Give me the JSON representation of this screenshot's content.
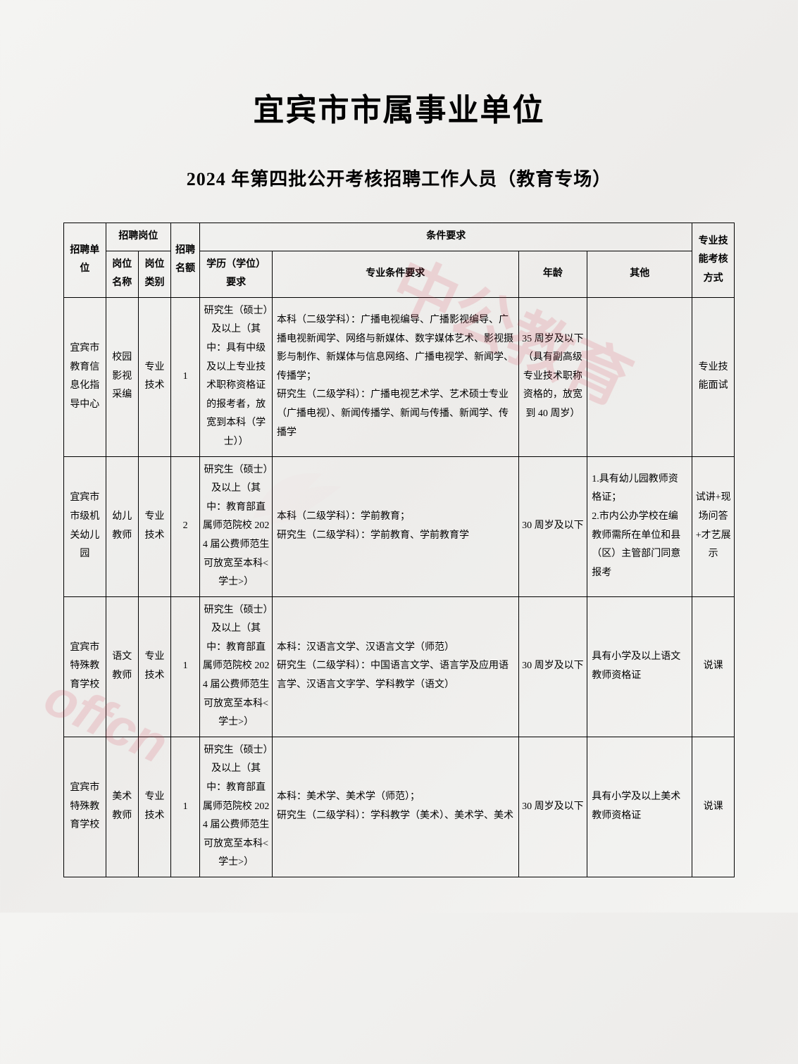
{
  "title_main": "宜宾市市属事业单位",
  "title_sub": "2024 年第四批公开考核招聘工作人员（教育专场）",
  "watermark_text": "中公教育",
  "watermark_brand": "offcn",
  "headers": {
    "unit": "招聘单位",
    "position_group": "招聘岗位",
    "pos_name": "岗位名称",
    "pos_type": "岗位类别",
    "quota": "招聘名额",
    "requirements_group": "条件要求",
    "edu": "学历（学位）要求",
    "major": "专业条件要求",
    "age": "年龄",
    "other": "其他",
    "exam": "专业技能考核方式"
  },
  "rows": [
    {
      "unit": "宜宾市教育信息化指导中心",
      "pos_name": "校园影视采编",
      "pos_type": "专业技术",
      "quota": "1",
      "edu": "研究生（硕士）及以上（其中：具有中级及以上专业技术职称资格证的报考者，放宽到本科（学士））",
      "major": "本科（二级学科）：广播电视编导、广播影视编导、广播电视新闻学、网络与新媒体、数字媒体艺术、影视摄影与制作、新媒体与信息网络、广播电视学、新闻学、传播学；\n研究生（二级学科）：广播电视艺术学、艺术硕士专业（广播电视）、新闻传播学、新闻与传播、新闻学、传播学",
      "age": "35 周岁及以下（具有副高级专业技术职称资格的，放宽到 40 周岁）",
      "other": "",
      "exam": "专业技能面试"
    },
    {
      "unit": "宜宾市市级机关幼儿园",
      "pos_name": "幼儿教师",
      "pos_type": "专业技术",
      "quota": "2",
      "edu": "研究生（硕士）及以上（其中：教育部直属师范院校 2024 届公费师范生可放宽至本科<学士>）",
      "major": "本科（二级学科）：学前教育；\n研究生（二级学科）：学前教育、学前教育学",
      "age": "30 周岁及以下",
      "other": "1.具有幼儿园教师资格证；\n2.市内公办学校在编教师需所在单位和县（区）主管部门同意报考",
      "exam": "试讲+现场问答+才艺展示"
    },
    {
      "unit": "宜宾市特殊教育学校",
      "pos_name": "语文教师",
      "pos_type": "专业技术",
      "quota": "1",
      "edu": "研究生（硕士）及以上（其中：教育部直属师范院校 2024 届公费师范生可放宽至本科<学士>）",
      "major": "本科：汉语言文学、汉语言文学（师范）\n研究生（二级学科）：中国语言文学、语言学及应用语言学、汉语言文字学、学科教学（语文）",
      "age": "30 周岁及以下",
      "other": "具有小学及以上语文教师资格证",
      "exam": "说课"
    },
    {
      "unit": "宜宾市特殊教育学校",
      "pos_name": "美术教师",
      "pos_type": "专业技术",
      "quota": "1",
      "edu": "研究生（硕士）及以上（其中：教育部直属师范院校 2024 届公费师范生可放宽至本科<学士>）",
      "major": "本科：美术学、美术学（师范）；\n研究生（二级学科）：学科教学（美术）、美术学、美术",
      "age": "30 周岁及以下",
      "other": "具有小学及以上美术教师资格证",
      "exam": "说课"
    }
  ]
}
